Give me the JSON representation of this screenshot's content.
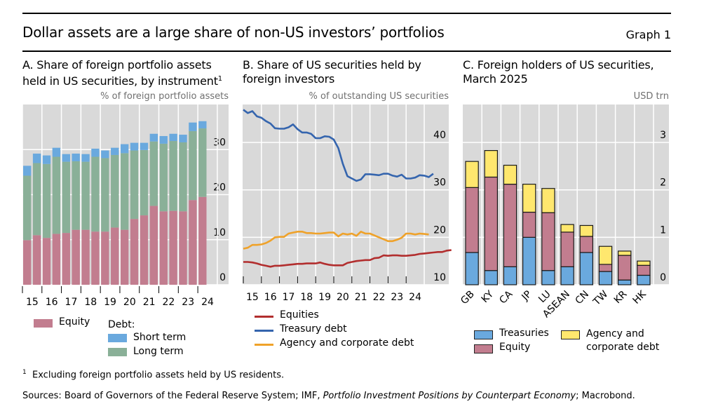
{
  "header": {
    "title": "Dollar assets are a large share of non-US investors’ portfolios",
    "graph_number": "Graph 1"
  },
  "footnote": {
    "marker": "1",
    "text": "Excluding foreign portfolio assets held by US residents."
  },
  "sources": {
    "prefix": "Sources: Board of Governors of the Federal Reserve System; IMF, ",
    "italic": "Portfolio Investment Positions by Counterpart Economy",
    "suffix": "; Macrobond."
  },
  "colors": {
    "equity": "#C27D8F",
    "short_term": "#6AA9DE",
    "long_term": "#8AB098",
    "equities_line": "#B22E2E",
    "treasury_line": "#3565AE",
    "agency_line": "#EFA22A",
    "treasuries_bar": "#6AA9DE",
    "agency_bar": "#FFE76E",
    "plot_bg": "#D9D9D9"
  },
  "chart_data": [
    {
      "id": "A",
      "type": "bar",
      "stacked": true,
      "title_line1": "A. Share of foreign portfolio assets",
      "title_line2": "held in US securities, by instrument",
      "title_sup": "1",
      "ylabel": "% of foreign portfolio assets",
      "ylim": [
        0,
        40
      ],
      "yticks": [
        0,
        10,
        20,
        30
      ],
      "xtick_labels": [
        "15",
        "16",
        "17",
        "18",
        "19",
        "20",
        "21",
        "22",
        "23",
        "24"
      ],
      "grid": true,
      "series": [
        {
          "name": "Equity",
          "values": [
            9.9,
            11.0,
            10.4,
            11.3,
            11.5,
            12.2,
            12.2,
            11.8,
            11.8,
            12.7,
            12.2,
            14.6,
            15.4,
            17.5,
            16.3,
            16.4,
            16.3,
            18.8,
            19.5
          ]
        },
        {
          "name": "Long term",
          "values": [
            14.3,
            16.0,
            16.4,
            17.1,
            15.8,
            15.2,
            15.1,
            16.6,
            16.3,
            16.1,
            17.0,
            15.2,
            14.5,
            14.3,
            15.0,
            15.5,
            15.3,
            15.3,
            15.2
          ]
        },
        {
          "name": "Short term",
          "values": [
            2.2,
            2.1,
            1.9,
            2.0,
            1.7,
            1.7,
            1.7,
            1.8,
            1.7,
            1.6,
            2.0,
            1.7,
            1.6,
            1.7,
            1.7,
            1.6,
            1.7,
            1.9,
            1.6
          ]
        }
      ],
      "legend": {
        "equity": "Equity",
        "debt_header": "Debt:",
        "short_term": "Short term",
        "long_term": "Long term"
      }
    },
    {
      "id": "B",
      "type": "line",
      "title_line1": "B. Share of US securities held by",
      "title_line2": "foreign investors",
      "ylabel": "% of outstanding US securities",
      "ylim": [
        10,
        48
      ],
      "yticks": [
        10,
        20,
        30,
        40
      ],
      "xtick_labels": [
        "15",
        "16",
        "17",
        "18",
        "19",
        "20",
        "21",
        "22",
        "23",
        "24"
      ],
      "x_start": 2015.0,
      "x_step": 0.25,
      "grid": true,
      "series": [
        {
          "name": "Equities",
          "values": [
            14.8,
            14.8,
            14.7,
            14.5,
            14.2,
            14.0,
            13.8,
            14.0,
            14.0,
            14.1,
            14.2,
            14.3,
            14.4,
            14.4,
            14.5,
            14.5,
            14.5,
            14.7,
            14.4,
            14.2,
            14.1,
            14.1,
            14.1,
            14.6,
            14.8,
            15.0,
            15.1,
            15.2,
            15.2,
            15.6,
            15.7,
            16.2,
            16.1,
            16.2,
            16.2,
            16.1,
            16.1,
            16.2,
            16.3,
            16.5,
            16.6,
            16.7,
            16.8,
            16.9,
            16.9,
            17.2,
            17.3
          ]
        },
        {
          "name": "Treasury debt",
          "values": [
            46.9,
            46.2,
            46.6,
            45.5,
            45.2,
            44.5,
            44.0,
            43.0,
            42.9,
            42.9,
            43.2,
            43.8,
            42.8,
            42.1,
            42.1,
            41.8,
            40.9,
            40.9,
            41.3,
            41.2,
            40.6,
            38.8,
            35.5,
            32.9,
            32.4,
            31.9,
            32.2,
            33.3,
            33.3,
            33.2,
            33.1,
            33.4,
            33.4,
            33.0,
            32.8,
            33.2,
            32.4,
            32.4,
            32.6,
            33.1,
            33.0,
            32.7,
            33.4
          ]
        },
        {
          "name": "Agency and corporate debt",
          "values": [
            17.6,
            17.8,
            18.4,
            18.4,
            18.5,
            18.8,
            19.3,
            20.0,
            20.1,
            20.1,
            20.8,
            21.0,
            21.2,
            21.2,
            20.9,
            20.9,
            20.8,
            20.8,
            20.9,
            21.0,
            21.0,
            20.2,
            20.8,
            20.6,
            20.8,
            20.3,
            21.2,
            20.8,
            20.8,
            20.4,
            20.0,
            19.6,
            19.2,
            19.2,
            19.5,
            19.9,
            20.8,
            20.8,
            20.6,
            20.8,
            20.7,
            20.6
          ]
        }
      ],
      "legend": [
        "Equities",
        "Treasury debt",
        "Agency and corporate debt"
      ]
    },
    {
      "id": "C",
      "type": "bar",
      "stacked": true,
      "title_line1": "C. Foreign holders of US securities,",
      "title_line2": "March 2025",
      "ylabel": "USD trn",
      "ylim": [
        0,
        3.8
      ],
      "yticks": [
        0,
        1,
        2,
        3
      ],
      "categories": [
        "GB",
        "KY",
        "CA",
        "JP",
        "LU",
        "ASEAN",
        "CN",
        "TW",
        "KR",
        "HK"
      ],
      "grid": true,
      "series": [
        {
          "name": "Treasuries",
          "values": [
            0.68,
            0.3,
            0.38,
            1.0,
            0.3,
            0.38,
            0.68,
            0.28,
            0.1,
            0.2
          ]
        },
        {
          "name": "Equity",
          "values": [
            1.37,
            1.97,
            1.74,
            0.53,
            1.22,
            0.73,
            0.34,
            0.15,
            0.52,
            0.21
          ]
        },
        {
          "name": "Agency and corporate debt",
          "values": [
            0.55,
            0.56,
            0.4,
            0.59,
            0.51,
            0.16,
            0.23,
            0.38,
            0.09,
            0.09
          ]
        }
      ],
      "legend": {
        "treasuries": "Treasuries",
        "equity": "Equity",
        "agency_line1": "Agency and",
        "agency_line2": "corporate debt"
      }
    }
  ]
}
